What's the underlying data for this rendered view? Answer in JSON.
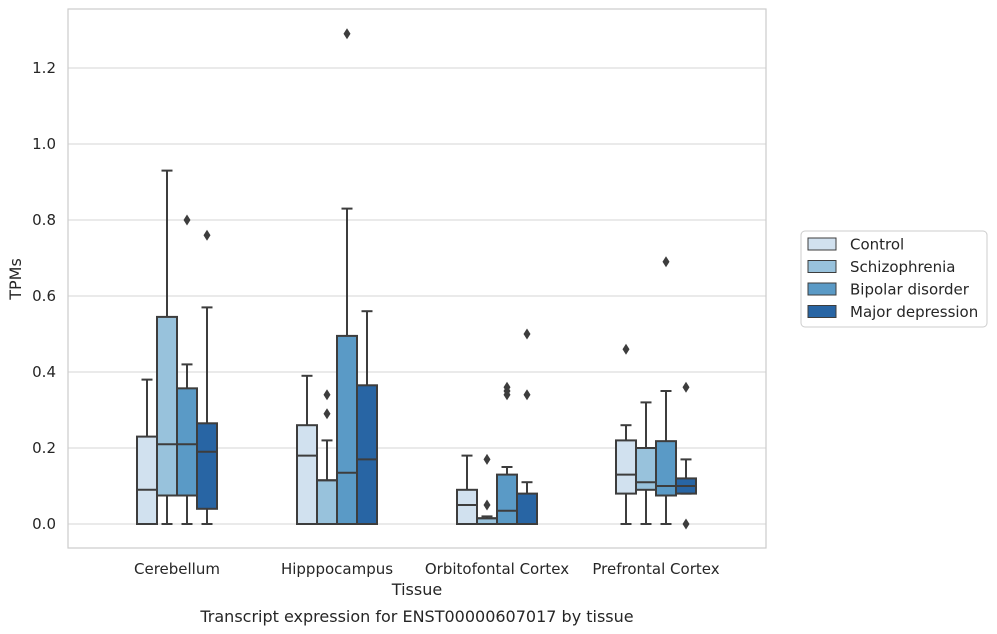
{
  "caption": "Transcript expression for ENST00000607017 by tissue",
  "chart_data": {
    "type": "box",
    "title": "",
    "xlabel": "Tissue",
    "ylabel": "TPMs",
    "ylim": [
      -0.06,
      1.36
    ],
    "yticks": [
      "0.0",
      "0.2",
      "0.4",
      "0.6",
      "0.8",
      "1.0",
      "1.2"
    ],
    "grid": "horizontal",
    "legend_position": "right",
    "categories": [
      "Cerebellum",
      "Hipppocampus",
      "Orbitofontal Cortex",
      "Prefrontal Cortex"
    ],
    "series": [
      {
        "name": "Control",
        "color": "#d1e1ef",
        "boxes": [
          {
            "whisker_low": 0.0,
            "q1": 0.0,
            "median": 0.09,
            "q3": 0.23,
            "whisker_high": 0.38,
            "outliers": []
          },
          {
            "whisker_low": 0.0,
            "q1": 0.0,
            "median": 0.18,
            "q3": 0.26,
            "whisker_high": 0.39,
            "outliers": []
          },
          {
            "whisker_low": 0.0,
            "q1": 0.0,
            "median": 0.05,
            "q3": 0.09,
            "whisker_high": 0.18,
            "outliers": []
          },
          {
            "whisker_low": 0.0,
            "q1": 0.08,
            "median": 0.13,
            "q3": 0.22,
            "whisker_high": 0.26,
            "outliers": [
              0.46
            ]
          }
        ]
      },
      {
        "name": "Schizophrenia",
        "color": "#98c2dc",
        "boxes": [
          {
            "whisker_low": 0.0,
            "q1": 0.075,
            "median": 0.21,
            "q3": 0.545,
            "whisker_high": 0.93,
            "outliers": []
          },
          {
            "whisker_low": 0.0,
            "q1": 0.0,
            "median": 0.115,
            "q3": 0.115,
            "whisker_high": 0.22,
            "outliers": [
              0.29,
              0.34
            ]
          },
          {
            "whisker_low": 0.0,
            "q1": 0.0,
            "median": 0.015,
            "q3": 0.015,
            "whisker_high": 0.02,
            "outliers": [
              0.05,
              0.17
            ]
          },
          {
            "whisker_low": 0.0,
            "q1": 0.09,
            "median": 0.11,
            "q3": 0.2,
            "whisker_high": 0.32,
            "outliers": []
          }
        ]
      },
      {
        "name": "Bipolar disorder",
        "color": "#5a9ac6",
        "boxes": [
          {
            "whisker_low": 0.0,
            "q1": 0.075,
            "median": 0.21,
            "q3": 0.357,
            "whisker_high": 0.42,
            "outliers": [
              0.8
            ]
          },
          {
            "whisker_low": 0.0,
            "q1": 0.0,
            "median": 0.135,
            "q3": 0.495,
            "whisker_high": 0.83,
            "outliers": [
              1.29
            ]
          },
          {
            "whisker_low": 0.0,
            "q1": 0.0,
            "median": 0.035,
            "q3": 0.13,
            "whisker_high": 0.15,
            "outliers": [
              0.34,
              0.35,
              0.36
            ]
          },
          {
            "whisker_low": 0.0,
            "q1": 0.075,
            "median": 0.1,
            "q3": 0.218,
            "whisker_high": 0.35,
            "outliers": [
              0.69
            ]
          }
        ]
      },
      {
        "name": "Major depression",
        "color": "#2865a4",
        "boxes": [
          {
            "whisker_low": 0.0,
            "q1": 0.04,
            "median": 0.19,
            "q3": 0.265,
            "whisker_high": 0.57,
            "outliers": [
              0.76
            ]
          },
          {
            "whisker_low": 0.0,
            "q1": 0.0,
            "median": 0.17,
            "q3": 0.365,
            "whisker_high": 0.56,
            "outliers": []
          },
          {
            "whisker_low": 0.0,
            "q1": 0.0,
            "median": 0.0,
            "q3": 0.08,
            "whisker_high": 0.11,
            "outliers": [
              0.34,
              0.5
            ]
          },
          {
            "whisker_low": 0.08,
            "q1": 0.08,
            "median": 0.1,
            "q3": 0.12,
            "whisker_high": 0.17,
            "outliers": [
              0.0,
              0.36
            ]
          }
        ]
      }
    ]
  }
}
